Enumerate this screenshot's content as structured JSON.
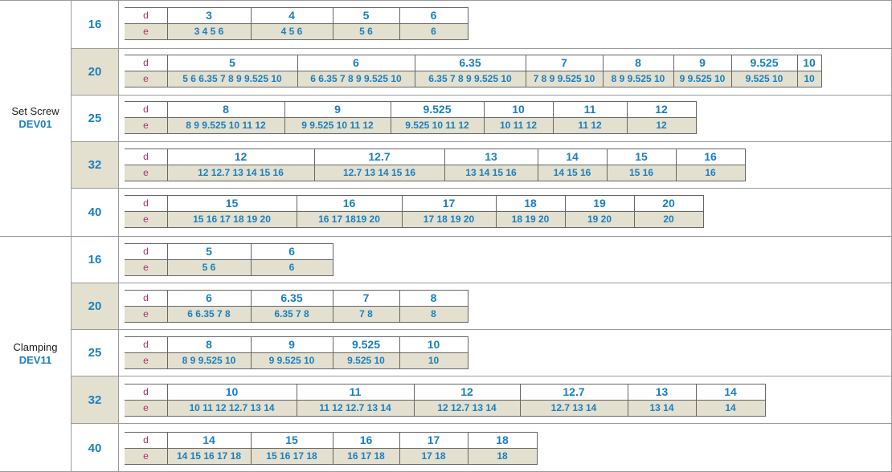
{
  "groups": [
    {
      "name": "Set Screw",
      "code": "DEV01",
      "rows": [
        {
          "size": "16",
          "cols": [
            {
              "d": "3",
              "e": "3 4 5 6"
            },
            {
              "d": "4",
              "e": "4 5 6"
            },
            {
              "d": "5",
              "e": "5 6"
            },
            {
              "d": "6",
              "e": "6"
            }
          ]
        },
        {
          "size": "20",
          "cols": [
            {
              "d": "5",
              "e": "5 6 6.35 7 8 9 9.525 10"
            },
            {
              "d": "6",
              "e": "6 6.35 7 8 9 9.525 10"
            },
            {
              "d": "6.35",
              "e": "6.35 7 8 9 9.525 10"
            },
            {
              "d": "7",
              "e": "7 8 9 9.525 10"
            },
            {
              "d": "8",
              "e": "8 9 9.525 10"
            },
            {
              "d": "9",
              "e": "9 9.525 10"
            },
            {
              "d": "9.525",
              "e": "9.525 10"
            },
            {
              "d": "10",
              "e": "10"
            }
          ]
        },
        {
          "size": "25",
          "cols": [
            {
              "d": "8",
              "e": "8 9 9.525 10 11 12"
            },
            {
              "d": "9",
              "e": "9 9.525 10 11 12"
            },
            {
              "d": "9.525",
              "e": "9.525 10 11 12"
            },
            {
              "d": "10",
              "e": "10 11 12"
            },
            {
              "d": "11",
              "e": "11 12"
            },
            {
              "d": "12",
              "e": "12"
            }
          ]
        },
        {
          "size": "32",
          "cols": [
            {
              "d": "12",
              "e": "12 12.7 13 14 15 16"
            },
            {
              "d": "12.7",
              "e": "12.7 13 14 15 16"
            },
            {
              "d": "13",
              "e": "13 14 15 16"
            },
            {
              "d": "14",
              "e": "14 15 16"
            },
            {
              "d": "15",
              "e": "15 16"
            },
            {
              "d": "16",
              "e": "16"
            }
          ]
        },
        {
          "size": "40",
          "cols": [
            {
              "d": "15",
              "e": "15 16 17 18 19 20"
            },
            {
              "d": "16",
              "e": "16 17 1819 20"
            },
            {
              "d": "17",
              "e": "17 18 19 20"
            },
            {
              "d": "18",
              "e": "18 19 20"
            },
            {
              "d": "19",
              "e": "19 20"
            },
            {
              "d": "20",
              "e": "20"
            }
          ]
        }
      ]
    },
    {
      "name": "Clamping",
      "code": "DEV11",
      "rows": [
        {
          "size": "16",
          "cols": [
            {
              "d": "5",
              "e": "5 6"
            },
            {
              "d": "6",
              "e": "6"
            }
          ]
        },
        {
          "size": "20",
          "cols": [
            {
              "d": "6",
              "e": "6 6.35 7 8"
            },
            {
              "d": "6.35",
              "e": "6.35 7 8"
            },
            {
              "d": "7",
              "e": "7 8"
            },
            {
              "d": "8",
              "e": "8"
            }
          ]
        },
        {
          "size": "25",
          "cols": [
            {
              "d": "8",
              "e": "8 9 9.525 10"
            },
            {
              "d": "9",
              "e": "9 9.525 10"
            },
            {
              "d": "9.525",
              "e": "9.525 10"
            },
            {
              "d": "10",
              "e": "10"
            }
          ]
        },
        {
          "size": "32",
          "cols": [
            {
              "d": "10",
              "e": "10 11 12 12.7 13 14"
            },
            {
              "d": "11",
              "e": "11 12 12.7 13 14"
            },
            {
              "d": "12",
              "e": "12 12.7 13 14"
            },
            {
              "d": "12.7",
              "e": "12.7 13 14"
            },
            {
              "d": "13",
              "e": "13 14"
            },
            {
              "d": "14",
              "e": "14"
            }
          ]
        },
        {
          "size": "40",
          "cols": [
            {
              "d": "14",
              "e": "14 15 16 17 18"
            },
            {
              "d": "15",
              "e": "15 16 17 18"
            },
            {
              "d": "16",
              "e": "16 17 18"
            },
            {
              "d": "17",
              "e": "17 18"
            },
            {
              "d": "18",
              "e": "18"
            }
          ]
        }
      ]
    }
  ],
  "labels": {
    "d": "d",
    "e": "e"
  }
}
